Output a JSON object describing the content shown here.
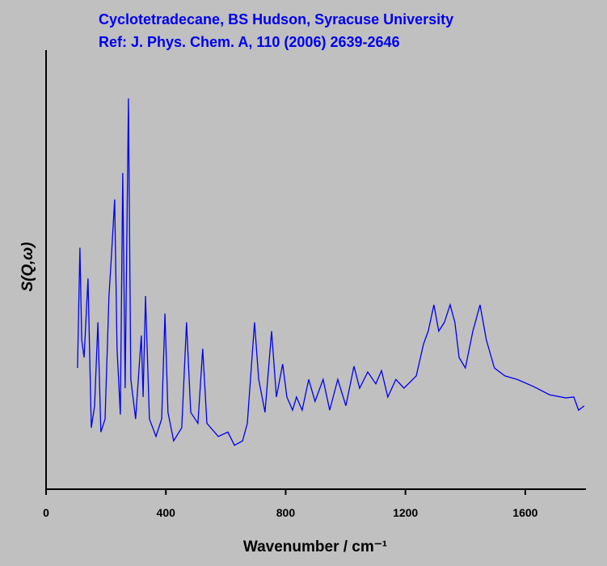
{
  "chart_data": {
    "type": "line",
    "title": "Cyclotetradecane, BS Hudson, Syracuse University",
    "subtitle": "Ref: J. Phys. Chem. A, 110 (2006) 2639-2646",
    "x_label": "Wavenumber / cm⁻¹",
    "y_label": "S(Q,ω)",
    "xlim": [
      0,
      1800
    ],
    "xticks": [
      0,
      400,
      800,
      1200,
      1600
    ],
    "ylim": [
      0,
      100
    ],
    "series": [
      {
        "name": "Cyclotetradecane",
        "color": "#0000ee",
        "x": [
          105,
          113,
          119,
          127,
          140,
          151,
          162,
          173,
          183,
          197,
          210,
          219,
          229,
          237,
          248,
          256,
          264,
          275,
          283,
          299,
          318,
          324,
          332,
          345,
          367,
          386,
          397,
          407,
          426,
          453,
          469,
          483,
          507,
          523,
          537,
          575,
          607,
          629,
          656,
          672,
          696,
          710,
          731,
          753,
          769,
          790,
          804,
          823,
          836,
          855,
          877,
          898,
          925,
          947,
          974,
          1001,
          1028,
          1047,
          1074,
          1101,
          1120,
          1141,
          1168,
          1195,
          1236,
          1260,
          1276,
          1295,
          1311,
          1330,
          1349,
          1365,
          1379,
          1400,
          1425,
          1449,
          1470,
          1497,
          1532,
          1573,
          1627,
          1681,
          1735,
          1762,
          1778,
          1797
        ],
        "values": [
          27.6,
          55,
          34,
          30,
          48,
          14,
          19,
          38,
          13,
          16,
          44,
          54,
          66,
          32,
          17,
          72,
          23,
          89,
          25,
          16,
          35,
          21,
          44,
          16,
          12,
          16,
          40,
          17.5,
          11,
          14,
          38,
          17.5,
          15,
          32,
          15,
          12,
          13,
          10,
          11,
          15,
          38,
          25,
          17.5,
          36,
          21,
          28.5,
          21,
          18,
          21,
          18,
          25,
          20,
          25,
          18,
          25,
          19,
          28,
          23,
          26.7,
          24,
          27,
          21,
          25,
          23,
          25.8,
          33,
          36,
          42,
          36,
          38,
          42,
          38,
          30,
          27.6,
          36,
          42,
          34,
          27.6,
          25.8,
          25,
          23.4,
          21.5,
          20.8,
          21,
          18,
          19
        ]
      }
    ]
  }
}
